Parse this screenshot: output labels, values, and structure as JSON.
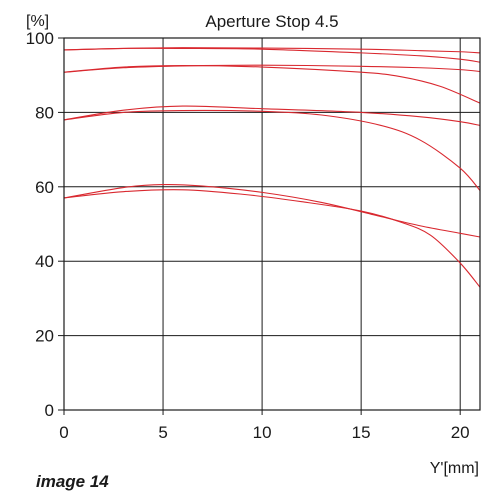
{
  "caption": "image 14",
  "chart_data": {
    "type": "line",
    "title": "Aperture Stop 4.5",
    "ylabel": "[%]",
    "xlabel": "Y'[mm]",
    "xlim": [
      0,
      21
    ],
    "ylim": [
      0,
      100
    ],
    "x_ticks": [
      0,
      5,
      10,
      15,
      20
    ],
    "y_ticks": [
      0,
      20,
      40,
      60,
      80,
      100
    ],
    "grid": true,
    "line_color": "#d9282f",
    "series": [
      {
        "x": [
          0,
          3,
          6,
          10,
          15,
          18,
          20,
          21
        ],
        "values": [
          96.8,
          97.2,
          97.4,
          97.3,
          97.0,
          96.6,
          96.3,
          96.0
        ]
      },
      {
        "x": [
          0,
          3,
          6,
          10,
          15,
          18,
          20,
          21
        ],
        "values": [
          96.8,
          97.2,
          97.2,
          97.0,
          96.0,
          95.2,
          94.3,
          93.5
        ]
      },
      {
        "x": [
          0,
          3,
          6,
          10,
          15,
          18,
          20,
          21
        ],
        "values": [
          90.8,
          92.0,
          92.5,
          92.7,
          92.4,
          92.0,
          91.5,
          91.0
        ]
      },
      {
        "x": [
          0,
          3,
          6,
          10,
          15,
          17,
          19,
          21
        ],
        "values": [
          90.8,
          92.2,
          92.6,
          92.2,
          90.8,
          89.6,
          87.0,
          82.5
        ]
      },
      {
        "x": [
          0,
          3,
          6,
          10,
          15,
          18,
          20,
          21
        ],
        "values": [
          78.0,
          80.6,
          81.7,
          81.0,
          80.0,
          78.8,
          77.5,
          76.5
        ]
      },
      {
        "x": [
          0,
          3,
          6,
          10,
          13,
          16,
          18,
          20,
          21
        ],
        "values": [
          78.0,
          80.0,
          80.5,
          80.3,
          79.3,
          76.5,
          72.5,
          65.0,
          59.0
        ]
      },
      {
        "x": [
          0,
          3,
          5,
          7,
          10,
          13,
          16,
          18,
          20,
          21
        ],
        "values": [
          57.0,
          59.8,
          60.6,
          60.2,
          58.5,
          55.8,
          52.0,
          49.5,
          47.5,
          46.5
        ]
      },
      {
        "x": [
          0,
          3,
          6,
          9,
          12,
          15,
          17,
          18.5,
          20,
          21
        ],
        "values": [
          57.0,
          58.7,
          59.2,
          58.0,
          56.0,
          53.5,
          50.5,
          47.0,
          39.5,
          33.0
        ]
      }
    ]
  }
}
